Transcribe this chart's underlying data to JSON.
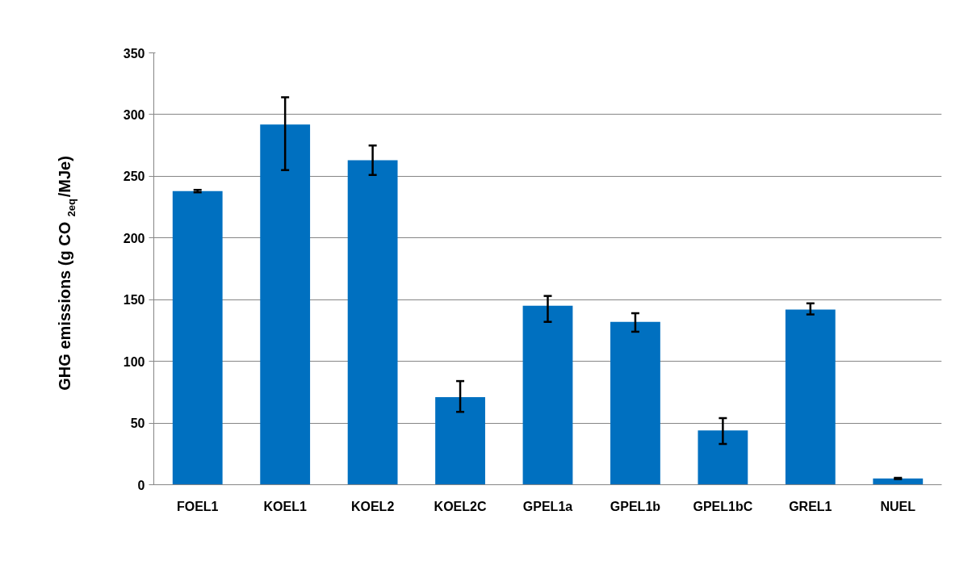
{
  "chart_data": {
    "type": "bar",
    "ylabel": "GHG emissions (g CO$_{2eq}$/MJe)",
    "categories": [
      "FOEL1",
      "KOEL1",
      "KOEL2",
      "KOEL2C",
      "GPEL1a",
      "GPEL1b",
      "GPEL1bC",
      "GREL1",
      "NUEL"
    ],
    "values": [
      238,
      292,
      263,
      71,
      145,
      132,
      44,
      142,
      5
    ],
    "errors": [
      [
        237,
        239
      ],
      [
        255,
        314
      ],
      [
        251,
        275
      ],
      [
        59,
        84
      ],
      [
        132,
        153
      ],
      [
        124,
        139
      ],
      [
        33,
        54
      ],
      [
        138,
        147
      ],
      [
        4.5,
        5.5
      ]
    ],
    "color": "#0070c0",
    "ylim": [
      0,
      350
    ],
    "yticks": [
      0,
      50,
      100,
      150,
      200,
      250,
      300,
      350
    ],
    "grid": "y"
  }
}
